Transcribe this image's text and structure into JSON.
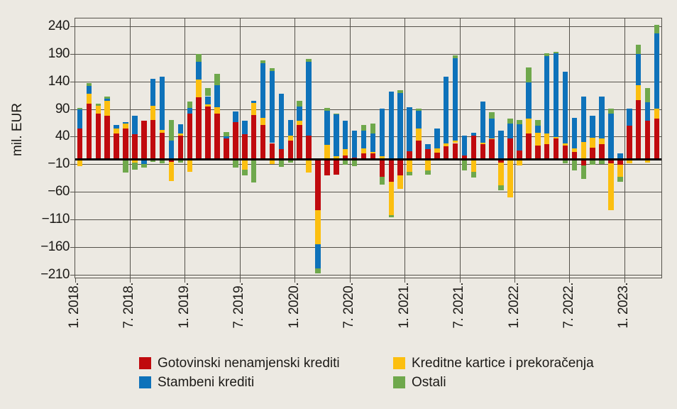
{
  "chart_data": {
    "type": "bar",
    "stacked": true,
    "ylabel": "mil. EUR",
    "ylim": [
      -215,
      255
    ],
    "y_ticks": [
      240,
      190,
      140,
      90,
      40,
      -10,
      -60,
      -110,
      -160,
      -210
    ],
    "y_tick_labels": [
      "240",
      "190",
      "140",
      "90",
      "40",
      "−10",
      "−60",
      "−110",
      "−160",
      "−210"
    ],
    "x_tick_labels": [
      "1. 2018.",
      "7. 2018.",
      "1. 2019.",
      "7. 2019.",
      "1. 2020.",
      "7. 2020.",
      "1. 2021.",
      "7. 2021.",
      "1. 2022.",
      "7. 2022.",
      "1. 2023."
    ],
    "x_ticks_every_n_months": 6,
    "months": [
      "1.2018",
      "2.2018",
      "3.2018",
      "4.2018",
      "5.2018",
      "6.2018",
      "7.2018",
      "8.2018",
      "9.2018",
      "10.2018",
      "11.2018",
      "12.2018",
      "1.2019",
      "2.2019",
      "3.2019",
      "4.2019",
      "5.2019",
      "6.2019",
      "7.2019",
      "8.2019",
      "9.2019",
      "10.2019",
      "11.2019",
      "12.2019",
      "1.2020",
      "2.2020",
      "3.2020",
      "4.2020",
      "5.2020",
      "6.2020",
      "7.2020",
      "8.2020",
      "9.2020",
      "10.2020",
      "11.2020",
      "12.2020",
      "1.2021",
      "2.2021",
      "3.2021",
      "4.2021",
      "5.2021",
      "6.2021",
      "7.2021",
      "8.2021",
      "9.2021",
      "10.2021",
      "11.2021",
      "12.2021",
      "1.2022",
      "2.2022",
      "3.2022",
      "4.2022",
      "5.2022",
      "6.2022",
      "7.2022",
      "8.2022",
      "9.2022",
      "10.2022",
      "11.2022",
      "12.2022",
      "1.2023",
      "2.2023",
      "3.2023",
      "4.2023"
    ],
    "series": [
      {
        "name": "Gotovinski nenamjenski krediti",
        "color": "#c00a0e",
        "values": [
          55,
          100,
          82,
          78,
          47,
          56,
          45,
          70,
          71,
          48,
          -5,
          43,
          82,
          112,
          95,
          82,
          37,
          67,
          45,
          80,
          62,
          29,
          18,
          34,
          62,
          43,
          -93,
          -30,
          -28,
          7,
          3,
          10,
          10,
          -32,
          -41,
          -30,
          14,
          34,
          18,
          12,
          23,
          29,
          6,
          43,
          27,
          36,
          -7,
          38,
          15,
          47,
          24,
          27,
          38,
          25,
          13,
          -11,
          21,
          27,
          -8,
          -10,
          60,
          107,
          70,
          74
        ]
      },
      {
        "name": "Kreditne kartice i prekoračenja",
        "color": "#fcbf10",
        "values": [
          -13,
          18,
          15,
          28,
          9,
          8,
          -6,
          0,
          26,
          5,
          -35,
          3,
          -23,
          32,
          4,
          12,
          0,
          0,
          -19,
          22,
          13,
          -9,
          0,
          8,
          8,
          -25,
          -61,
          26,
          5,
          11,
          0,
          9,
          3,
          5,
          -61,
          -24,
          -23,
          22,
          -20,
          7,
          5,
          4,
          0,
          -23,
          3,
          2,
          -40,
          -70,
          -12,
          26,
          24,
          20,
          2,
          3,
          6,
          31,
          18,
          11,
          -85,
          -22,
          -8,
          27,
          -7,
          18
        ]
      },
      {
        "name": "Stambeni krediti",
        "color": "#0e72ba",
        "values": [
          35,
          15,
          0,
          4,
          6,
          3,
          33,
          -9,
          48,
          97,
          33,
          17,
          11,
          33,
          15,
          40,
          4,
          19,
          25,
          3,
          99,
          131,
          100,
          29,
          25,
          133,
          -44,
          62,
          76,
          51,
          48,
          33,
          34,
          86,
          122,
          120,
          80,
          31,
          9,
          37,
          121,
          150,
          37,
          5,
          74,
          36,
          52,
          26,
          48,
          66,
          13,
          140,
          152,
          130,
          56,
          82,
          39,
          75,
          82,
          10,
          31,
          57,
          33,
          136
        ]
      },
      {
        "name": "Ostali",
        "color": "#6fa84c",
        "values": [
          3,
          5,
          3,
          4,
          0,
          -25,
          -13,
          -6,
          -5,
          -8,
          38,
          -7,
          11,
          14,
          15,
          20,
          8,
          -15,
          -10,
          -43,
          5,
          5,
          -14,
          -7,
          10,
          6,
          -9,
          5,
          2,
          -10,
          -13,
          10,
          18,
          -14,
          -4,
          5,
          -7,
          5,
          -8,
          0,
          0,
          5,
          -21,
          -11,
          0,
          11,
          -9,
          10,
          8,
          27,
          10,
          5,
          2,
          -8,
          -21,
          -25,
          -10,
          -9,
          9,
          -9,
          0,
          17,
          26,
          16
        ]
      }
    ],
    "legend": {
      "position": "bottom",
      "columns": [
        [
          0,
          2
        ],
        [
          1,
          3
        ]
      ]
    },
    "grid": true,
    "grid_color": "#55524b",
    "zero_line_color": "#000000",
    "background": "#ece9e2"
  }
}
